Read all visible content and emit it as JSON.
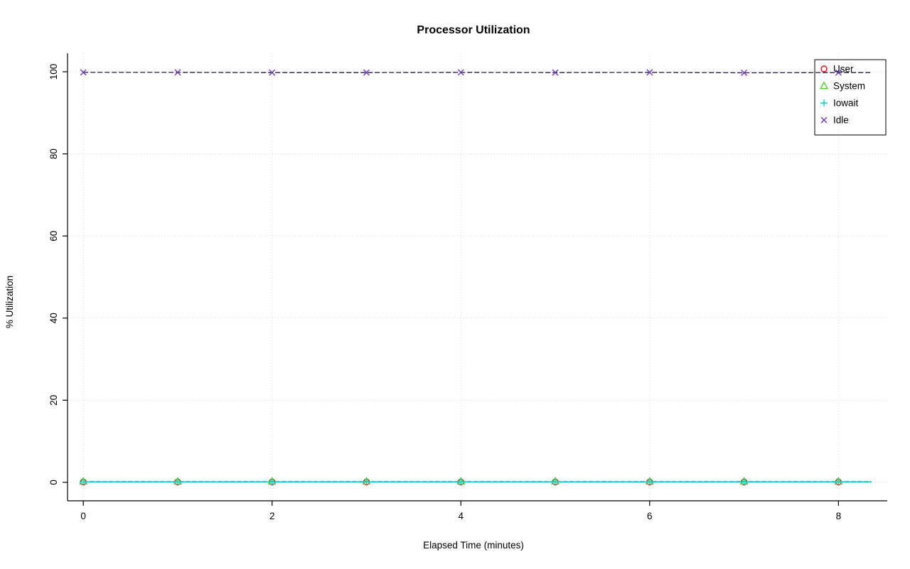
{
  "chart_data": {
    "type": "line",
    "title": "Processor Utilization",
    "xlabel": "Elapsed Time (minutes)",
    "ylabel": "% Utilization",
    "x": [
      0,
      1,
      2,
      3,
      4,
      5,
      6,
      7,
      8,
      8.35
    ],
    "marker_points": 9,
    "series": [
      {
        "name": "User",
        "color": "#ff0000",
        "marker": "circle",
        "line_color": "#ff0000",
        "line_dash": "",
        "values": [
          0.1,
          0.1,
          0.1,
          0.1,
          0.1,
          0.1,
          0.1,
          0.1,
          0.1,
          0.1
        ]
      },
      {
        "name": "System",
        "color": "#4ad225",
        "marker": "triangle",
        "line_color": "#4ad225",
        "line_dash": "6 3",
        "values": [
          0.2,
          0.2,
          0.2,
          0.2,
          0.2,
          0.2,
          0.2,
          0.2,
          0.2,
          0.2
        ]
      },
      {
        "name": "Iowait",
        "color": "#00d5d5",
        "marker": "plus",
        "line_color": "#00d5d5",
        "line_dash": "",
        "values": [
          0.05,
          0.05,
          0.05,
          0.05,
          0.05,
          0.05,
          0.05,
          0.05,
          0.05,
          0.05
        ]
      },
      {
        "name": "Idle",
        "color": "#7437c8",
        "marker": "x",
        "line_color": "#2a1a5e",
        "line_dash": "7 3",
        "values": [
          99.85,
          99.85,
          99.8,
          99.8,
          99.85,
          99.8,
          99.85,
          99.75,
          99.8,
          99.8
        ]
      }
    ],
    "xticks": [
      0,
      2,
      4,
      6,
      8
    ],
    "yticks": [
      0,
      20,
      40,
      60,
      80,
      100
    ],
    "xlim": [
      0,
      8.35
    ],
    "ylim": [
      0,
      100
    ],
    "grid": true,
    "grid_color": "#d4d4d4",
    "background": "#ffffff",
    "legend": {
      "position": "top-right",
      "entries": [
        "User",
        "System",
        "Iowait",
        "Idle"
      ]
    }
  }
}
